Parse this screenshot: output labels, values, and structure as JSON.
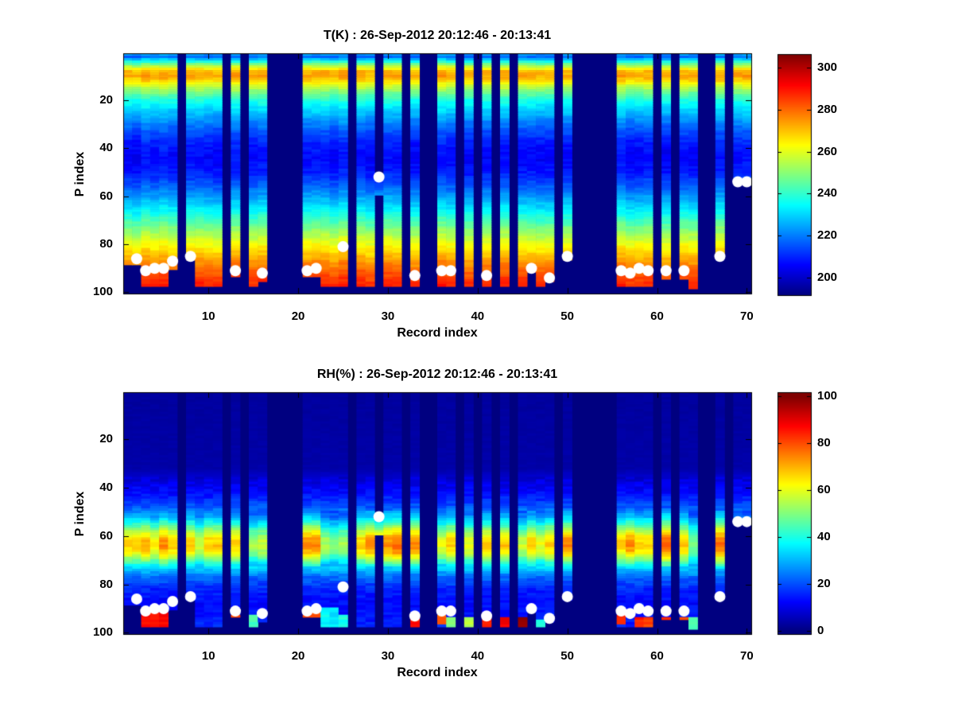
{
  "figure": {
    "background": "#ffffff",
    "no_data_color": "#000080"
  },
  "chart_data": [
    {
      "type": "heatmap",
      "panel": "temperature",
      "title": "T(K) : 26-Sep-2012 20:12:46 - 20:13:41",
      "xlabel": "Record index",
      "ylabel": "P index",
      "units": "K",
      "colormap": "jet",
      "x_range": [
        1,
        70
      ],
      "y_range": [
        1,
        100
      ],
      "y_axis_reversed": true,
      "x_ticks": [
        10,
        20,
        30,
        40,
        50,
        60,
        70
      ],
      "y_ticks": [
        20,
        40,
        60,
        80,
        100
      ],
      "colorbar": {
        "min": 192,
        "max": 306,
        "ticks": [
          200,
          220,
          240,
          260,
          280,
          300
        ]
      },
      "profile": [
        [
          1,
          223
        ],
        [
          2,
          218
        ],
        [
          4,
          238
        ],
        [
          6,
          256
        ],
        [
          8,
          271
        ],
        [
          10,
          273
        ],
        [
          12,
          267
        ],
        [
          14,
          258
        ],
        [
          17,
          247
        ],
        [
          20,
          238
        ],
        [
          24,
          230
        ],
        [
          28,
          223
        ],
        [
          33,
          215
        ],
        [
          38,
          209
        ],
        [
          44,
          206
        ],
        [
          50,
          209
        ],
        [
          56,
          217
        ],
        [
          62,
          227
        ],
        [
          67,
          236
        ],
        [
          72,
          246
        ],
        [
          76,
          254
        ],
        [
          80,
          262
        ],
        [
          84,
          269
        ],
        [
          88,
          276
        ],
        [
          92,
          282
        ],
        [
          96,
          287
        ],
        [
          100,
          290
        ]
      ],
      "missing_records": [
        7,
        12,
        14,
        17,
        18,
        19,
        20,
        26,
        32,
        34,
        35,
        38,
        40,
        42,
        44,
        49,
        51,
        52,
        53,
        54,
        55,
        60,
        62,
        65,
        66,
        68
      ],
      "record_top": {
        "29": 52
      },
      "record_bottom_default": 97,
      "record_bottom": {
        "1": 88,
        "2": 88,
        "6": 90,
        "8": 86,
        "13": 93,
        "16": 95,
        "21": 93,
        "22": 93,
        "29": 59,
        "46": 91,
        "48": 95,
        "50": 86,
        "61": 94,
        "63": 94,
        "64": 98,
        "67": 85,
        "69": 54,
        "70": 54
      },
      "white_dots": [
        [
          2,
          86
        ],
        [
          3,
          91
        ],
        [
          4,
          90
        ],
        [
          5,
          90
        ],
        [
          6,
          87
        ],
        [
          8,
          85
        ],
        [
          13,
          91
        ],
        [
          16,
          92
        ],
        [
          21,
          91
        ],
        [
          22,
          90
        ],
        [
          25,
          81
        ],
        [
          29,
          52
        ],
        [
          33,
          93
        ],
        [
          36,
          91
        ],
        [
          37,
          91
        ],
        [
          41,
          93
        ],
        [
          46,
          90
        ],
        [
          48,
          94
        ],
        [
          50,
          85
        ],
        [
          56,
          91
        ],
        [
          57,
          92
        ],
        [
          58,
          90
        ],
        [
          59,
          91
        ],
        [
          61,
          91
        ],
        [
          63,
          91
        ],
        [
          67,
          85
        ],
        [
          69,
          54
        ],
        [
          70,
          54
        ]
      ]
    },
    {
      "type": "heatmap",
      "panel": "relative_humidity",
      "title": "RH(%) : 26-Sep-2012 20:12:46 - 20:13:41",
      "xlabel": "Record index",
      "ylabel": "P index",
      "units": "%",
      "colormap": "jet",
      "x_range": [
        1,
        70
      ],
      "y_range": [
        1,
        100
      ],
      "y_axis_reversed": true,
      "x_ticks": [
        10,
        20,
        30,
        40,
        50,
        60,
        70
      ],
      "y_ticks": [
        20,
        40,
        60,
        80,
        100
      ],
      "colorbar": {
        "min": 0,
        "max": 100,
        "ticks": [
          0,
          20,
          40,
          60,
          80,
          100
        ]
      },
      "profile": [
        [
          1,
          3
        ],
        [
          32,
          4
        ],
        [
          37,
          9
        ],
        [
          43,
          14
        ],
        [
          48,
          21
        ],
        [
          52,
          30
        ],
        [
          55,
          42
        ],
        [
          58,
          55
        ],
        [
          61,
          65
        ],
        [
          64,
          68
        ],
        [
          67,
          62
        ],
        [
          70,
          48
        ],
        [
          73,
          34
        ],
        [
          77,
          23
        ],
        [
          82,
          16
        ],
        [
          87,
          13
        ],
        [
          92,
          14
        ],
        [
          97,
          16
        ],
        [
          100,
          16
        ]
      ],
      "band_range": [
        50,
        72
      ],
      "band_intensity": {
        "3": 1.05,
        "4": 0.95,
        "5": 1.1,
        "9": 0.85,
        "15": 0.8,
        "16": 0.85,
        "21": 1.1,
        "22": 1.1,
        "23": 0.8,
        "24": 0.75,
        "25": 0.8,
        "28": 1.1,
        "30": 1.1,
        "31": 1.15,
        "33": 1.1,
        "36": 0.9,
        "39": 0.9,
        "45": 0.85,
        "47": 0.9,
        "50": 1.1,
        "57": 1.1,
        "61": 1.15,
        "64": 0.75,
        "67": 1.15,
        "69": 0.8,
        "70": 0.8
      },
      "bottom_patches": {
        "3": [
          92,
          97,
          88
        ],
        "4": [
          92,
          97,
          85
        ],
        "5": [
          92,
          97,
          88
        ],
        "13": [
          93,
          96,
          80
        ],
        "15": [
          93,
          97,
          45
        ],
        "21": [
          93,
          96,
          82
        ],
        "22": [
          92,
          95,
          80
        ],
        "23": [
          90,
          97,
          38
        ],
        "24": [
          90,
          97,
          35
        ],
        "25": [
          93,
          97,
          40
        ],
        "33": [
          94,
          97,
          85
        ],
        "36": [
          93,
          96,
          80
        ],
        "37": [
          94,
          97,
          50
        ],
        "39": [
          94,
          97,
          55
        ],
        "41": [
          94,
          97,
          85
        ],
        "43": [
          94,
          97,
          88
        ],
        "45": [
          94,
          97,
          97
        ],
        "47": [
          95,
          97,
          40
        ],
        "56": [
          93,
          96,
          85
        ],
        "58": [
          94,
          97,
          85
        ],
        "59": [
          94,
          97,
          82
        ],
        "61": [
          94,
          97,
          85
        ],
        "63": [
          94,
          97,
          82
        ],
        "64": [
          94,
          98,
          45
        ]
      },
      "missing_records": [
        7,
        12,
        14,
        17,
        18,
        19,
        20,
        26,
        32,
        34,
        35,
        38,
        40,
        42,
        44,
        49,
        51,
        52,
        53,
        54,
        55,
        60,
        62,
        65,
        66,
        68
      ],
      "record_top": {
        "29": 52
      },
      "record_bottom_default": 97,
      "record_bottom": {
        "1": 88,
        "2": 88,
        "6": 90,
        "8": 86,
        "13": 93,
        "16": 95,
        "21": 93,
        "22": 93,
        "29": 59,
        "46": 91,
        "48": 95,
        "50": 86,
        "61": 94,
        "63": 94,
        "64": 98,
        "67": 85,
        "69": 54,
        "70": 54
      },
      "white_dots": [
        [
          2,
          86
        ],
        [
          3,
          91
        ],
        [
          4,
          90
        ],
        [
          5,
          90
        ],
        [
          6,
          87
        ],
        [
          8,
          85
        ],
        [
          13,
          91
        ],
        [
          16,
          92
        ],
        [
          21,
          91
        ],
        [
          22,
          90
        ],
        [
          25,
          81
        ],
        [
          29,
          52
        ],
        [
          33,
          93
        ],
        [
          36,
          91
        ],
        [
          37,
          91
        ],
        [
          41,
          93
        ],
        [
          46,
          90
        ],
        [
          48,
          94
        ],
        [
          50,
          85
        ],
        [
          56,
          91
        ],
        [
          57,
          92
        ],
        [
          58,
          90
        ],
        [
          59,
          91
        ],
        [
          61,
          91
        ],
        [
          63,
          91
        ],
        [
          67,
          85
        ],
        [
          69,
          54
        ],
        [
          70,
          54
        ]
      ]
    }
  ]
}
